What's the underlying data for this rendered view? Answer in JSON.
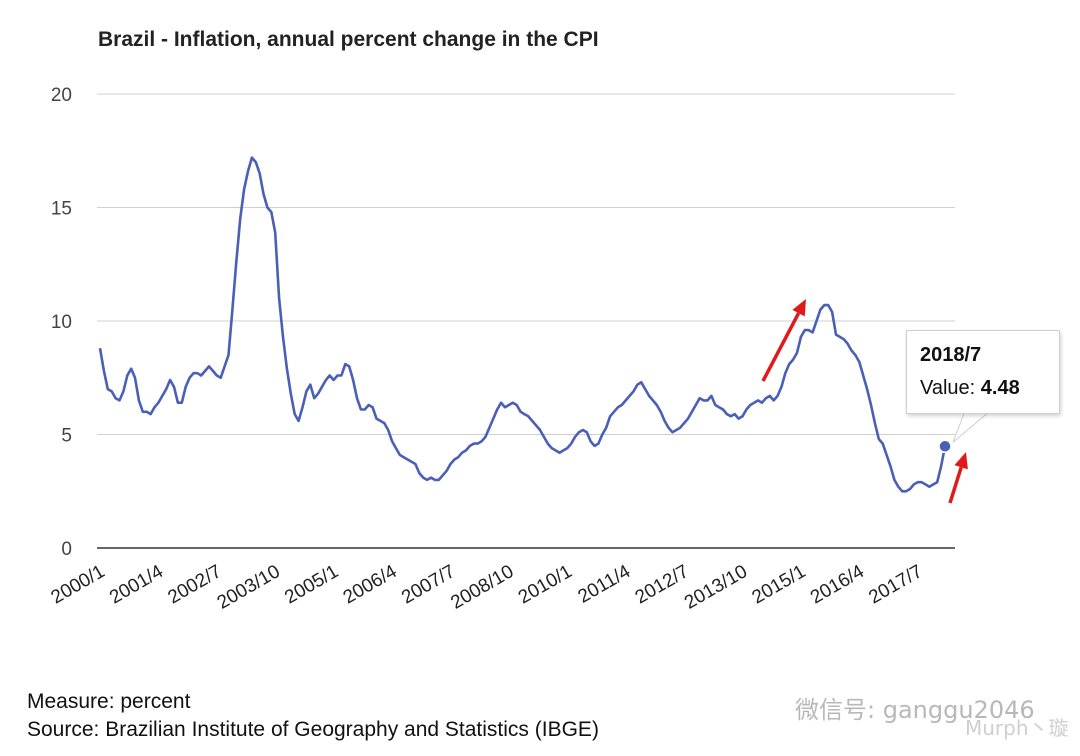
{
  "chart_data": {
    "type": "line",
    "title": "Brazil - Inflation, annual percent change in the CPI",
    "ylim": [
      0,
      20
    ],
    "yticks": [
      0,
      5,
      10,
      15,
      20
    ],
    "xlabels": [
      "2000/1",
      "2001/4",
      "2002/7",
      "2003/10",
      "2005/1",
      "2006/4",
      "2007/7",
      "2008/10",
      "2010/1",
      "2011/4",
      "2012/7",
      "2013/10",
      "2015/1",
      "2016/4",
      "2017/7"
    ],
    "grid": true,
    "line_color": "#4a5fb5",
    "x_start": "2000/1",
    "x_end": "2018/7",
    "series": [
      {
        "values": [
          8.8,
          7.8,
          7.0,
          6.9,
          6.6,
          6.5,
          6.9,
          7.6,
          7.9,
          7.5,
          6.5,
          6.0,
          6.0,
          5.9,
          6.2,
          6.4,
          6.7,
          7.0,
          7.4,
          7.1,
          6.4,
          6.4,
          7.1,
          7.5,
          7.7,
          7.7,
          7.6,
          7.8,
          8.0,
          7.8,
          7.6,
          7.5,
          8.0,
          8.5,
          10.5,
          12.6,
          14.5,
          15.8,
          16.6,
          17.2,
          17.0,
          16.5,
          15.6,
          15.0,
          14.8,
          13.9,
          11.0,
          9.3,
          7.9,
          6.8,
          5.9,
          5.6,
          6.2,
          6.9,
          7.2,
          6.6,
          6.8,
          7.1,
          7.4,
          7.6,
          7.4,
          7.6,
          7.6,
          8.1,
          8.0,
          7.4,
          6.6,
          6.1,
          6.1,
          6.3,
          6.2,
          5.7,
          5.6,
          5.5,
          5.2,
          4.7,
          4.4,
          4.1,
          4.0,
          3.9,
          3.8,
          3.7,
          3.3,
          3.1,
          3.0,
          3.1,
          3.0,
          3.0,
          3.2,
          3.4,
          3.7,
          3.9,
          4.0,
          4.2,
          4.3,
          4.5,
          4.6,
          4.6,
          4.7,
          4.9,
          5.3,
          5.7,
          6.1,
          6.4,
          6.2,
          6.3,
          6.4,
          6.3,
          6.0,
          5.9,
          5.8,
          5.6,
          5.4,
          5.2,
          4.9,
          4.6,
          4.4,
          4.3,
          4.2,
          4.3,
          4.4,
          4.6,
          4.9,
          5.1,
          5.2,
          5.1,
          4.7,
          4.5,
          4.6,
          5.0,
          5.3,
          5.8,
          6.0,
          6.2,
          6.3,
          6.5,
          6.7,
          6.9,
          7.2,
          7.3,
          7.0,
          6.7,
          6.5,
          6.3,
          6.0,
          5.6,
          5.3,
          5.1,
          5.2,
          5.3,
          5.5,
          5.7,
          6.0,
          6.3,
          6.6,
          6.5,
          6.5,
          6.7,
          6.3,
          6.2,
          6.1,
          5.9,
          5.8,
          5.9,
          5.7,
          5.8,
          6.1,
          6.3,
          6.4,
          6.5,
          6.4,
          6.6,
          6.7,
          6.5,
          6.7,
          7.1,
          7.7,
          8.1,
          8.3,
          8.6,
          9.3,
          9.6,
          9.6,
          9.5,
          10.0,
          10.5,
          10.7,
          10.7,
          10.4,
          9.4,
          9.3,
          9.2,
          9.0,
          8.7,
          8.5,
          8.2,
          7.6,
          7.0,
          6.3,
          5.5,
          4.8,
          4.6,
          4.1,
          3.6,
          3.0,
          2.7,
          2.5,
          2.5,
          2.6,
          2.8,
          2.9,
          2.9,
          2.8,
          2.7,
          2.8,
          2.9,
          3.6,
          4.48
        ]
      }
    ],
    "tooltip": {
      "date": "2018/7",
      "value_label": "Value:",
      "value": "4.48"
    }
  },
  "footer": {
    "measure": "Measure: percent",
    "source": "Source: Brazilian Institute of Geography and Statistics (IBGE)"
  },
  "watermark": {
    "text": "微信号: ganggu2046",
    "text2": "Murph丶璇"
  }
}
